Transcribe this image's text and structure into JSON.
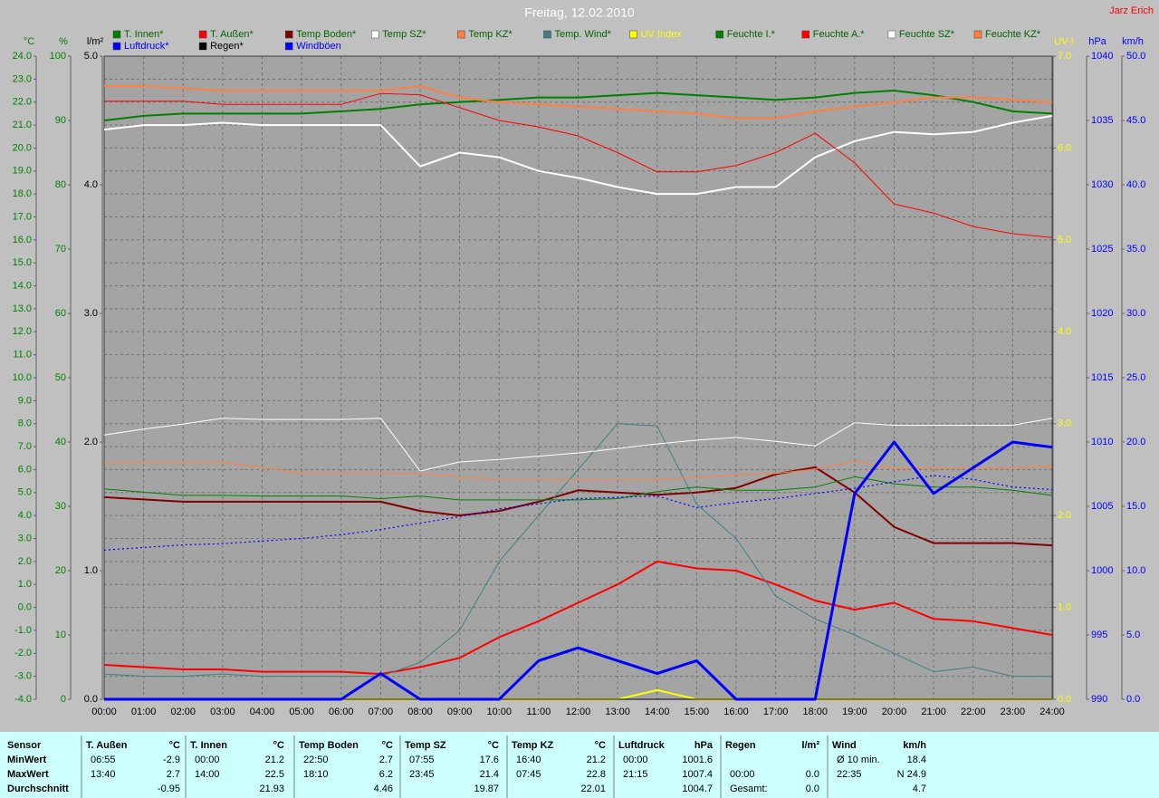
{
  "header": {
    "title": "Freitag, 12.02.2010",
    "author": "Jarz Erich"
  },
  "chart_data": {
    "type": "line",
    "grid": true,
    "x": [
      0,
      1,
      2,
      3,
      4,
      5,
      6,
      7,
      8,
      9,
      10,
      11,
      12,
      13,
      14,
      15,
      16,
      17,
      18,
      19,
      20,
      21,
      22,
      23,
      24
    ],
    "xlim": [
      0,
      24
    ],
    "xticks": [
      {
        "value": 0,
        "label": "00:00"
      },
      {
        "value": 1,
        "label": "01:00"
      },
      {
        "value": 2,
        "label": "02:00"
      },
      {
        "value": 3,
        "label": "03:00"
      },
      {
        "value": 4,
        "label": "04:00"
      },
      {
        "value": 5,
        "label": "05:00"
      },
      {
        "value": 6,
        "label": "06:00"
      },
      {
        "value": 7,
        "label": "07:00"
      },
      {
        "value": 8,
        "label": "08:00"
      },
      {
        "value": 9,
        "label": "09:00"
      },
      {
        "value": 10,
        "label": "10:00"
      },
      {
        "value": 11,
        "label": "11:00"
      },
      {
        "value": 12,
        "label": "12:00"
      },
      {
        "value": 13,
        "label": "13:00"
      },
      {
        "value": 14,
        "label": "14:00"
      },
      {
        "value": 15,
        "label": "15:00"
      },
      {
        "value": 16,
        "label": "16:00"
      },
      {
        "value": 17,
        "label": "17:00"
      },
      {
        "value": 18,
        "label": "18:00"
      },
      {
        "value": 19,
        "label": "19:00"
      },
      {
        "value": 20,
        "label": "20:00"
      },
      {
        "value": 21,
        "label": "21:00"
      },
      {
        "value": 22,
        "label": "22:00"
      },
      {
        "value": 23,
        "label": "23:00"
      },
      {
        "value": 24,
        "label": "24:00"
      }
    ],
    "y_axes": [
      {
        "label": "°C",
        "color": "#008000",
        "side": "left",
        "ylim": [
          -4,
          24
        ],
        "yticks": [
          {
            "value": -4,
            "label": "-4.0"
          },
          {
            "value": -3,
            "label": "-3.0"
          },
          {
            "value": -2,
            "label": "-2.0"
          },
          {
            "value": -1,
            "label": "-1.0"
          },
          {
            "value": 0,
            "label": "0.0"
          },
          {
            "value": 1,
            "label": "1.0"
          },
          {
            "value": 2,
            "label": "2.0"
          },
          {
            "value": 3,
            "label": "3.0"
          },
          {
            "value": 4,
            "label": "4.0"
          },
          {
            "value": 5,
            "label": "5.0"
          },
          {
            "value": 6,
            "label": "6.0"
          },
          {
            "value": 7,
            "label": "7.0"
          },
          {
            "value": 8,
            "label": "8.0"
          },
          {
            "value": 9,
            "label": "9.0"
          },
          {
            "value": 10,
            "label": "10.0"
          },
          {
            "value": 11,
            "label": "11.0"
          },
          {
            "value": 12,
            "label": "12.0"
          },
          {
            "value": 13,
            "label": "13.0"
          },
          {
            "value": 14,
            "label": "14.0"
          },
          {
            "value": 15,
            "label": "15.0"
          },
          {
            "value": 16,
            "label": "16.0"
          },
          {
            "value": 17,
            "label": "17.0"
          },
          {
            "value": 18,
            "label": "18.0"
          },
          {
            "value": 19,
            "label": "19.0"
          },
          {
            "value": 20,
            "label": "20.0"
          },
          {
            "value": 21,
            "label": "21.0"
          },
          {
            "value": 22,
            "label": "22.0"
          },
          {
            "value": 23,
            "label": "23.0"
          },
          {
            "value": 24,
            "label": "24.0"
          }
        ]
      },
      {
        "label": "%",
        "color": "#008000",
        "side": "left",
        "ylim": [
          0,
          100
        ],
        "yticks": [
          0,
          10,
          20,
          30,
          40,
          50,
          60,
          70,
          80,
          90,
          100
        ]
      },
      {
        "label": "l/m²",
        "color": "#000000",
        "side": "left",
        "ylim": [
          0,
          5
        ],
        "yticks": [
          {
            "value": 0,
            "label": "0.0"
          },
          {
            "value": 1,
            "label": "1.0"
          },
          {
            "value": 2,
            "label": "2.0"
          },
          {
            "value": 3,
            "label": "3.0"
          },
          {
            "value": 4,
            "label": "4.0"
          },
          {
            "value": 5,
            "label": "5.0"
          }
        ]
      },
      {
        "label": "UV-I",
        "color": "#ffff00",
        "side": "right",
        "ylim": [
          0,
          7
        ],
        "yticks": [
          {
            "value": 0,
            "label": "0.0"
          },
          {
            "value": 1,
            "label": "1.0"
          },
          {
            "value": 2,
            "label": "2.0"
          },
          {
            "value": 3,
            "label": "3.0"
          },
          {
            "value": 4,
            "label": "4.0"
          },
          {
            "value": 5,
            "label": "5.0"
          },
          {
            "value": 6,
            "label": "6.0"
          },
          {
            "value": 7,
            "label": "7.0"
          }
        ]
      },
      {
        "label": "hPa",
        "color": "#0000ff",
        "side": "right",
        "ylim": [
          990,
          1040
        ],
        "yticks": [
          990,
          995,
          1000,
          1005,
          1010,
          1015,
          1020,
          1025,
          1030,
          1035,
          1040
        ]
      },
      {
        "label": "km/h",
        "color": "#0000ff",
        "side": "right",
        "ylim": [
          0,
          50
        ],
        "yticks": [
          {
            "value": 0,
            "label": "0.0"
          },
          {
            "value": 5,
            "label": "5.0"
          },
          {
            "value": 10,
            "label": "10.0"
          },
          {
            "value": 15,
            "label": "15.0"
          },
          {
            "value": 20,
            "label": "20.0"
          },
          {
            "value": 25,
            "label": "25.0"
          },
          {
            "value": 30,
            "label": "30.0"
          },
          {
            "value": 35,
            "label": "35.0"
          },
          {
            "value": 40,
            "label": "40.0"
          },
          {
            "value": 45,
            "label": "45.0"
          },
          {
            "value": 50,
            "label": "50.0"
          }
        ]
      }
    ],
    "series": [
      {
        "name": "T. Innen*",
        "color": "#008000",
        "text_color": "#006400",
        "axis": 0,
        "line_style": "thick",
        "values": [
          21.2,
          21.4,
          21.5,
          21.5,
          21.5,
          21.5,
          21.6,
          21.7,
          21.9,
          22.0,
          22.1,
          22.2,
          22.2,
          22.3,
          22.4,
          22.3,
          22.2,
          22.1,
          22.2,
          22.4,
          22.5,
          22.3,
          22.0,
          21.6,
          21.5
        ]
      },
      {
        "name": "T. Außen*",
        "color": "#ff0000",
        "text_color": "#006400",
        "axis": 0,
        "line_style": "thick",
        "values": [
          -2.5,
          -2.6,
          -2.7,
          -2.7,
          -2.8,
          -2.8,
          -2.8,
          -2.9,
          -2.6,
          -2.2,
          -1.3,
          -0.6,
          0.2,
          1.0,
          2.0,
          1.7,
          1.6,
          1.0,
          0.3,
          -0.1,
          0.2,
          -0.5,
          -0.6,
          -0.9,
          -1.2
        ]
      },
      {
        "name": "Temp Boden*",
        "color": "#800000",
        "text_color": "#006400",
        "axis": 0,
        "line_style": "thick",
        "values": [
          4.8,
          4.7,
          4.6,
          4.6,
          4.6,
          4.6,
          4.6,
          4.6,
          4.2,
          4.0,
          4.2,
          4.6,
          5.1,
          5.0,
          4.9,
          5.0,
          5.2,
          5.8,
          6.1,
          5.0,
          3.5,
          2.8,
          2.8,
          2.8,
          2.7
        ]
      },
      {
        "name": "Temp SZ*",
        "color": "#ffffff",
        "text_color": "#006400",
        "axis": 0,
        "line_style": "thick",
        "values": [
          20.8,
          21.0,
          21.0,
          21.1,
          21.0,
          21.0,
          21.0,
          21.0,
          19.2,
          19.8,
          19.6,
          19.0,
          18.7,
          18.3,
          18.0,
          18.0,
          18.3,
          18.3,
          19.6,
          20.3,
          20.7,
          20.6,
          20.7,
          21.1,
          21.4
        ]
      },
      {
        "name": "Temp KZ*",
        "color": "#ff8040",
        "text_color": "#006400",
        "axis": 0,
        "line_style": "thick",
        "values": [
          22.7,
          22.7,
          22.6,
          22.5,
          22.5,
          22.5,
          22.5,
          22.5,
          22.7,
          22.2,
          22.0,
          21.9,
          21.8,
          21.7,
          21.6,
          21.5,
          21.3,
          21.3,
          21.6,
          21.8,
          22.0,
          22.2,
          22.2,
          22.1,
          22.0
        ]
      },
      {
        "name": "Temp. Wind*",
        "color": "#408080",
        "text_color": "#006400",
        "axis": 0,
        "line_style": "thin",
        "values": [
          -2.9,
          -3.0,
          -3.0,
          -2.9,
          -3.0,
          -3.0,
          -3.0,
          -3.0,
          -2.4,
          -1.0,
          2.0,
          4.0,
          6.0,
          8.0,
          7.9,
          4.5,
          3.0,
          0.5,
          -0.5,
          -1.2,
          -2.0,
          -2.8,
          -2.6,
          -3.0,
          -3.0
        ]
      },
      {
        "name": "UV Index",
        "color": "#ffff00",
        "text_color": "#ffff00",
        "axis": 3,
        "line_style": "thick",
        "values": [
          0,
          0,
          0,
          0,
          0,
          0,
          0,
          0,
          0,
          0,
          0,
          0,
          0,
          0,
          0.1,
          0,
          0,
          0,
          0,
          0,
          0,
          0,
          0,
          0,
          0
        ]
      },
      {
        "name": "Feuchte I.*",
        "color": "#008000",
        "text_color": "#006400",
        "axis": 1,
        "line_style": "thin",
        "values": [
          32.7,
          32.2,
          31.7,
          31.7,
          31.6,
          31.6,
          31.6,
          31.2,
          31.6,
          31.0,
          31.0,
          31.0,
          31.0,
          31.2,
          32.3,
          33.0,
          32.5,
          32.5,
          33.0,
          34.6,
          33.5,
          33.0,
          33.0,
          32.5,
          31.7
        ]
      },
      {
        "name": "Feuchte A.*",
        "color": "#ff0000",
        "text_color": "#006400",
        "axis": 1,
        "line_style": "thin",
        "values": [
          93.0,
          93.0,
          93.0,
          92.5,
          92.5,
          92.5,
          92.5,
          94.2,
          94.0,
          92.0,
          90.0,
          89.0,
          87.6,
          85.0,
          82.0,
          82.0,
          83.0,
          85.0,
          88.0,
          83.4,
          77.0,
          75.6,
          73.5,
          72.4,
          71.8
        ]
      },
      {
        "name": "Feuchte SZ*",
        "color": "#ffffff",
        "text_color": "#006400",
        "axis": 1,
        "line_style": "thin",
        "values": [
          41.1,
          42.0,
          42.8,
          43.7,
          43.5,
          43.5,
          43.5,
          43.7,
          35.5,
          36.9,
          37.3,
          37.8,
          38.3,
          39.0,
          39.7,
          40.3,
          40.7,
          40.1,
          39.4,
          43.0,
          42.6,
          42.6,
          42.6,
          42.6,
          43.7
        ]
      },
      {
        "name": "Feuchte KZ*",
        "color": "#ff8040",
        "text_color": "#006400",
        "axis": 1,
        "line_style": "thin",
        "values": [
          36.9,
          36.9,
          36.9,
          36.9,
          36.0,
          35.2,
          35.2,
          35.2,
          35.1,
          34.6,
          34.1,
          34.1,
          34.1,
          34.1,
          34.1,
          34.5,
          34.9,
          35.1,
          35.8,
          37.0,
          35.9,
          35.9,
          35.9,
          36.0,
          36.2
        ]
      },
      {
        "name": "Luftdruck*",
        "color": "#0000ff",
        "text_color": "#0000ff",
        "axis": 4,
        "line_style": "dotted",
        "values": [
          1001.6,
          1001.8,
          1002.0,
          1002.1,
          1002.3,
          1002.5,
          1002.8,
          1003.2,
          1003.7,
          1004.2,
          1004.8,
          1005.2,
          1005.6,
          1005.7,
          1005.8,
          1004.9,
          1005.3,
          1005.6,
          1006.0,
          1006.4,
          1006.9,
          1007.4,
          1007.1,
          1006.5,
          1006.3
        ]
      },
      {
        "name": "Regen*",
        "color": "#000000",
        "text_color": "#000000",
        "axis": 2,
        "line_style": "thin",
        "values": [
          0,
          0,
          0,
          0,
          0,
          0,
          0,
          0,
          0,
          0,
          0,
          0,
          0,
          0,
          0,
          0,
          0,
          0,
          0,
          0,
          0,
          0,
          0,
          0,
          0
        ]
      },
      {
        "name": "Windböen",
        "color": "#0000ff",
        "text_color": "#0000ff",
        "axis": 5,
        "line_style": "heavy",
        "values": [
          0,
          0,
          0,
          0,
          0,
          0,
          0,
          2,
          0,
          0,
          0,
          3,
          4,
          3,
          2,
          3,
          0,
          0,
          0,
          16,
          20,
          16,
          18,
          20,
          19.6
        ]
      }
    ]
  },
  "table": {
    "row_labels": [
      "Sensor",
      "MinWert",
      "MaxWert",
      "Durchschnitt"
    ],
    "groups": [
      {
        "name": "T. Außen",
        "unit": "°C",
        "rows": [
          {
            "time": "06:55",
            "value": "-2.9"
          },
          {
            "time": "13:40",
            "value": "2.7"
          },
          {
            "value": "-0.95"
          }
        ]
      },
      {
        "name": "T. Innen",
        "unit": "°C",
        "rows": [
          {
            "time": "00:00",
            "value": "21.2"
          },
          {
            "time": "14:00",
            "value": "22.5"
          },
          {
            "value": "21.93"
          }
        ]
      },
      {
        "name": "Temp Boden",
        "unit": "°C",
        "rows": [
          {
            "time": "22:50",
            "value": "2.7"
          },
          {
            "time": "18:10",
            "value": "6.2"
          },
          {
            "value": "4.46"
          }
        ]
      },
      {
        "name": "Temp SZ",
        "unit": "°C",
        "rows": [
          {
            "time": "07:55",
            "value": "17.6"
          },
          {
            "time": "23:45",
            "value": "21.4"
          },
          {
            "value": "19.87"
          }
        ]
      },
      {
        "name": "Temp KZ",
        "unit": "°C",
        "rows": [
          {
            "time": "16:40",
            "value": "21.2"
          },
          {
            "time": "07:45",
            "value": "22.8"
          },
          {
            "value": "22.01"
          }
        ]
      },
      {
        "name": "Luftdruck",
        "unit": "hPa",
        "rows": [
          {
            "time": "00:00",
            "value": "1001.6"
          },
          {
            "time": "21:15",
            "value": "1007.4"
          },
          {
            "value": "1004.7"
          }
        ]
      },
      {
        "name": "Regen",
        "unit": "l/m²",
        "rows": [
          null,
          {
            "time": "00:00",
            "value": "0.0"
          },
          {
            "time": "Gesamt:",
            "value": "0.0"
          }
        ]
      },
      {
        "name": "Wind",
        "unit": "km/h",
        "rows": [
          {
            "time": "Ø 10 min.",
            "value": "18.4"
          },
          {
            "time": "22:35",
            "value": "N 24.9"
          },
          {
            "value": "4.7"
          }
        ]
      }
    ]
  }
}
